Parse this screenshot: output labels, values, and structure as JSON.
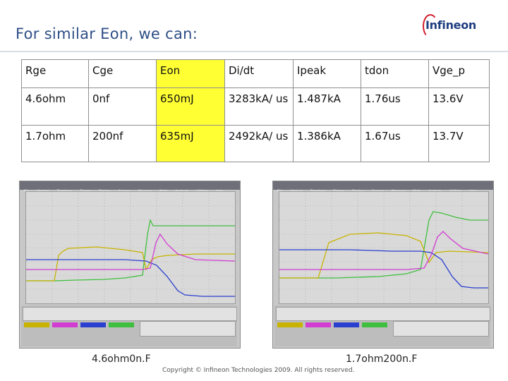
{
  "slide": {
    "title": "For similar Eon, we can:",
    "logo_text": "Infineon",
    "copyright": "Copyright © Infineon Technologies 2009. All rights reserved."
  },
  "table": {
    "headers": [
      "Rge",
      "Cge",
      "Eon",
      "Di/dt",
      "Ipeak",
      "tdon",
      "Vge_p"
    ],
    "rows": [
      [
        "4.6ohm",
        "0nf",
        "650mJ",
        "3283kA/ us",
        "1.487kA",
        "1.76us",
        "13.6V"
      ],
      [
        "1.7ohm",
        "200nf",
        "635mJ",
        "2492kA/ us",
        "1.386kA",
        "1.67us",
        "13.7V"
      ]
    ]
  },
  "scopes": [
    {
      "caption": "4.6ohm0n.F",
      "menu": [
        "File",
        "Vertical",
        "Timebase",
        "Trigger",
        "Display",
        "Cursors",
        "Measure",
        "Math",
        "Analysis",
        "Utilities",
        "Help"
      ]
    },
    {
      "caption": "1.7ohm200n.F",
      "menu": [
        "File",
        "Vertical",
        "Timebase",
        "Trigger",
        "Display",
        "Cursors",
        "Measure",
        "Math",
        "Analysis",
        "Utilities",
        "Help"
      ]
    }
  ],
  "colors": {
    "title": "#2f4f86",
    "highlight": "#ffff33",
    "trace_green": "#3fbf3f",
    "trace_yellow": "#c8b400",
    "trace_blue": "#2a3fd0",
    "trace_magenta": "#d23cd2"
  }
}
